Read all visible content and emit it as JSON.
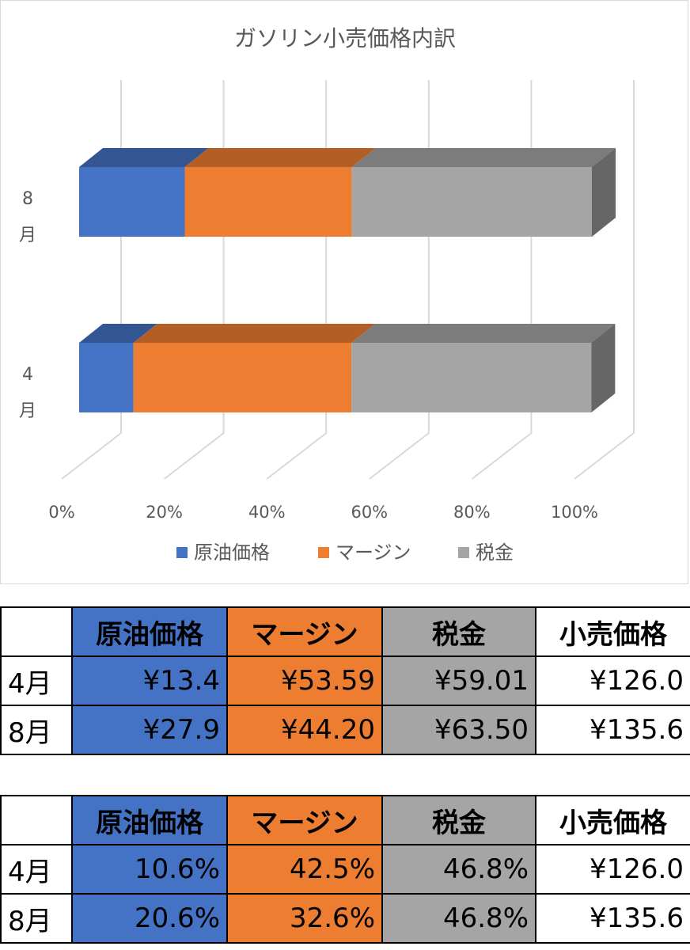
{
  "chart_data": {
    "type": "bar",
    "orientation": "horizontal",
    "stacking": "percent",
    "style": "3d",
    "title": "ガソリン小売価格内訳",
    "categories": [
      "8月",
      "4月"
    ],
    "category_label_lines": [
      [
        "8",
        "月"
      ],
      [
        "4",
        "月"
      ]
    ],
    "series": [
      {
        "name": "原油価格",
        "color": "#4472c4",
        "values": [
          20.6,
          10.6
        ]
      },
      {
        "name": "マージン",
        "color": "#ed7d31",
        "values": [
          32.6,
          42.5
        ]
      },
      {
        "name": "税金",
        "color": "#a5a5a5",
        "values": [
          46.8,
          46.8
        ]
      }
    ],
    "xlim": [
      0,
      100
    ],
    "x_ticks": [
      "0%",
      "20%",
      "40%",
      "60%",
      "80%",
      "100%"
    ],
    "grid": true,
    "legend_position": "bottom"
  },
  "price_table": {
    "headers": [
      "",
      "原油価格",
      "マージン",
      "税金",
      "小売価格"
    ],
    "rows": [
      [
        "4月",
        "¥13.4",
        "¥53.59",
        "¥59.01",
        "¥126.0"
      ],
      [
        "8月",
        "¥27.9",
        "¥44.20",
        "¥63.50",
        "¥135.6"
      ]
    ]
  },
  "share_table": {
    "headers": [
      "",
      "原油価格",
      "マージン",
      "税金",
      "小売価格"
    ],
    "rows": [
      [
        "4月",
        "10.6%",
        "42.5%",
        "46.8%",
        "¥126.0"
      ],
      [
        "8月",
        "20.6%",
        "32.6%",
        "46.8%",
        "¥135.6"
      ]
    ]
  }
}
